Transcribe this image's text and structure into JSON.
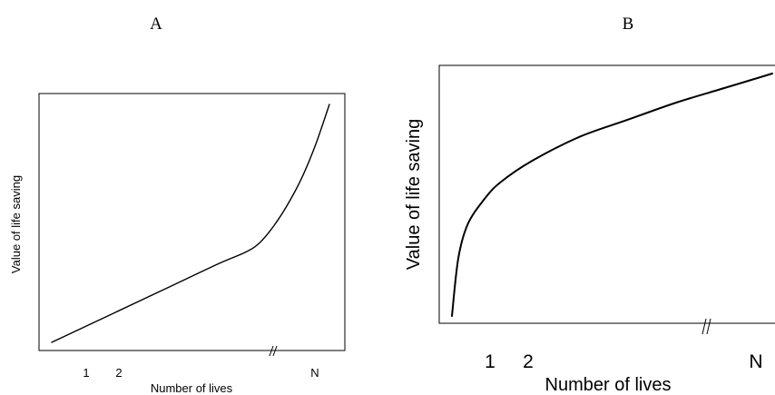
{
  "chart_data": [
    {
      "type": "line",
      "panel_label": "A",
      "xlabel": "Number of lives",
      "ylabel": "Value of life saving",
      "x_tick_labels": [
        "1",
        "2",
        "N"
      ],
      "axis_break": "//",
      "frame": "box",
      "grid": false,
      "series": [
        {
          "x": [
            0.0,
            0.2,
            0.4,
            0.6,
            0.7,
            0.75,
            0.8,
            0.85,
            0.9,
            0.95,
            1.0
          ],
          "values": [
            0.0,
            0.11,
            0.22,
            0.33,
            0.38,
            0.42,
            0.49,
            0.58,
            0.69,
            0.83,
            1.0
          ]
        }
      ]
    },
    {
      "type": "line",
      "panel_label": "B",
      "xlabel": "Number of lives",
      "ylabel": "Value of life saving",
      "x_tick_labels": [
        "1",
        "2",
        "N"
      ],
      "axis_break": "//",
      "frame": "box",
      "grid": false,
      "series": [
        {
          "x": [
            0.0,
            0.02,
            0.05,
            0.1,
            0.15,
            0.25,
            0.4,
            0.55,
            0.7,
            0.85,
            1.0
          ],
          "values": [
            0.0,
            0.24,
            0.38,
            0.48,
            0.55,
            0.64,
            0.74,
            0.81,
            0.88,
            0.94,
            1.0
          ]
        }
      ]
    }
  ]
}
